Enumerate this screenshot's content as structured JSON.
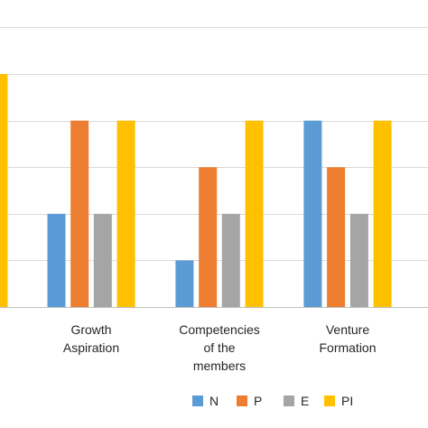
{
  "chart_data": {
    "type": "bar",
    "categories": [
      {
        "lines": [],
        "values": [
          null,
          null,
          null,
          5
        ]
      },
      {
        "lines": [
          "Growth",
          "Aspiration"
        ],
        "values": [
          2,
          4,
          2,
          4
        ]
      },
      {
        "lines": [
          "Competencies",
          "of the",
          "members"
        ],
        "values": [
          1,
          3,
          2,
          4
        ]
      },
      {
        "lines": [
          "Venture",
          "Formation"
        ],
        "values": [
          4,
          3,
          2,
          4
        ]
      }
    ],
    "series": [
      {
        "name": "N",
        "color": "#5B9BD5"
      },
      {
        "name": "P",
        "color": "#ED7D31"
      },
      {
        "name": "E",
        "color": "#A5A5A5"
      },
      {
        "name": "PI",
        "color": "#FFC000"
      }
    ],
    "ylim": [
      0,
      6
    ],
    "grid": true,
    "legend_position": "bottom"
  }
}
